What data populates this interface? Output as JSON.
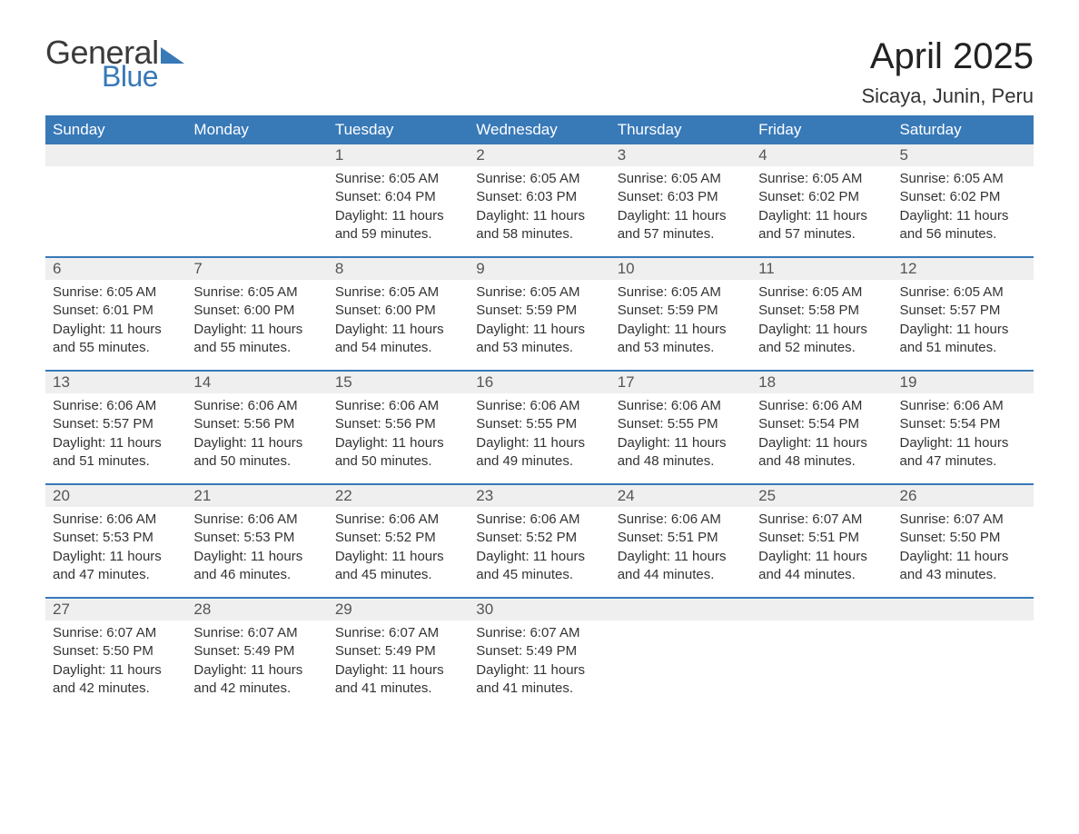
{
  "brand": {
    "line1": "General",
    "line2": "Blue"
  },
  "title": "April 2025",
  "location": "Sicaya, Junin, Peru",
  "colors": {
    "header_bg": "#3879b8",
    "header_text": "#ffffff",
    "daynum_bg": "#efefef",
    "row_divider": "#3879b8",
    "body_text": "#333333",
    "page_bg": "#ffffff"
  },
  "weekdays": [
    "Sunday",
    "Monday",
    "Tuesday",
    "Wednesday",
    "Thursday",
    "Friday",
    "Saturday"
  ],
  "labels": {
    "sunrise": "Sunrise",
    "sunset": "Sunset",
    "daylight": "Daylight"
  },
  "weeks": [
    [
      null,
      null,
      {
        "d": "1",
        "sr": "6:05 AM",
        "ss": "6:04 PM",
        "dl": "11 hours and 59 minutes."
      },
      {
        "d": "2",
        "sr": "6:05 AM",
        "ss": "6:03 PM",
        "dl": "11 hours and 58 minutes."
      },
      {
        "d": "3",
        "sr": "6:05 AM",
        "ss": "6:03 PM",
        "dl": "11 hours and 57 minutes."
      },
      {
        "d": "4",
        "sr": "6:05 AM",
        "ss": "6:02 PM",
        "dl": "11 hours and 57 minutes."
      },
      {
        "d": "5",
        "sr": "6:05 AM",
        "ss": "6:02 PM",
        "dl": "11 hours and 56 minutes."
      }
    ],
    [
      {
        "d": "6",
        "sr": "6:05 AM",
        "ss": "6:01 PM",
        "dl": "11 hours and 55 minutes."
      },
      {
        "d": "7",
        "sr": "6:05 AM",
        "ss": "6:00 PM",
        "dl": "11 hours and 55 minutes."
      },
      {
        "d": "8",
        "sr": "6:05 AM",
        "ss": "6:00 PM",
        "dl": "11 hours and 54 minutes."
      },
      {
        "d": "9",
        "sr": "6:05 AM",
        "ss": "5:59 PM",
        "dl": "11 hours and 53 minutes."
      },
      {
        "d": "10",
        "sr": "6:05 AM",
        "ss": "5:59 PM",
        "dl": "11 hours and 53 minutes."
      },
      {
        "d": "11",
        "sr": "6:05 AM",
        "ss": "5:58 PM",
        "dl": "11 hours and 52 minutes."
      },
      {
        "d": "12",
        "sr": "6:05 AM",
        "ss": "5:57 PM",
        "dl": "11 hours and 51 minutes."
      }
    ],
    [
      {
        "d": "13",
        "sr": "6:06 AM",
        "ss": "5:57 PM",
        "dl": "11 hours and 51 minutes."
      },
      {
        "d": "14",
        "sr": "6:06 AM",
        "ss": "5:56 PM",
        "dl": "11 hours and 50 minutes."
      },
      {
        "d": "15",
        "sr": "6:06 AM",
        "ss": "5:56 PM",
        "dl": "11 hours and 50 minutes."
      },
      {
        "d": "16",
        "sr": "6:06 AM",
        "ss": "5:55 PM",
        "dl": "11 hours and 49 minutes."
      },
      {
        "d": "17",
        "sr": "6:06 AM",
        "ss": "5:55 PM",
        "dl": "11 hours and 48 minutes."
      },
      {
        "d": "18",
        "sr": "6:06 AM",
        "ss": "5:54 PM",
        "dl": "11 hours and 48 minutes."
      },
      {
        "d": "19",
        "sr": "6:06 AM",
        "ss": "5:54 PM",
        "dl": "11 hours and 47 minutes."
      }
    ],
    [
      {
        "d": "20",
        "sr": "6:06 AM",
        "ss": "5:53 PM",
        "dl": "11 hours and 47 minutes."
      },
      {
        "d": "21",
        "sr": "6:06 AM",
        "ss": "5:53 PM",
        "dl": "11 hours and 46 minutes."
      },
      {
        "d": "22",
        "sr": "6:06 AM",
        "ss": "5:52 PM",
        "dl": "11 hours and 45 minutes."
      },
      {
        "d": "23",
        "sr": "6:06 AM",
        "ss": "5:52 PM",
        "dl": "11 hours and 45 minutes."
      },
      {
        "d": "24",
        "sr": "6:06 AM",
        "ss": "5:51 PM",
        "dl": "11 hours and 44 minutes."
      },
      {
        "d": "25",
        "sr": "6:07 AM",
        "ss": "5:51 PM",
        "dl": "11 hours and 44 minutes."
      },
      {
        "d": "26",
        "sr": "6:07 AM",
        "ss": "5:50 PM",
        "dl": "11 hours and 43 minutes."
      }
    ],
    [
      {
        "d": "27",
        "sr": "6:07 AM",
        "ss": "5:50 PM",
        "dl": "11 hours and 42 minutes."
      },
      {
        "d": "28",
        "sr": "6:07 AM",
        "ss": "5:49 PM",
        "dl": "11 hours and 42 minutes."
      },
      {
        "d": "29",
        "sr": "6:07 AM",
        "ss": "5:49 PM",
        "dl": "11 hours and 41 minutes."
      },
      {
        "d": "30",
        "sr": "6:07 AM",
        "ss": "5:49 PM",
        "dl": "11 hours and 41 minutes."
      },
      null,
      null,
      null
    ]
  ]
}
